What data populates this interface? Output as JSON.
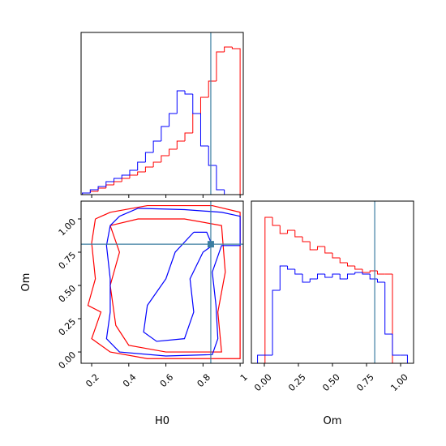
{
  "chart_data": {
    "type": "corner",
    "x_label": "H0",
    "y_label": "Om",
    "om_x_label": "Om",
    "h0_xlim": [
      0.143,
      1.017
    ],
    "h0_ticks": [
      0.2,
      0.4,
      0.6,
      0.8,
      1.0
    ],
    "om_ylim": [
      -0.085,
      1.134
    ],
    "om_xlim": [
      -0.095,
      1.095
    ],
    "om_ticks": [
      {
        "value": 0,
        "label": "0.00"
      },
      {
        "value": 0.25,
        "label": "0.25"
      },
      {
        "value": 0.5,
        "label": "0.50"
      },
      {
        "value": 0.75,
        "label": "0.75"
      },
      {
        "value": 1,
        "label": "1.00"
      }
    ],
    "hist_ylim": [
      0,
      1
    ],
    "truths": {
      "H0": 0.842,
      "Om": 0.81,
      "color": "#3b7ea1"
    },
    "h0_hist": {
      "bins": [
        0.15,
        0.1925,
        0.235,
        0.2775,
        0.32,
        0.3625,
        0.405,
        0.4475,
        0.49,
        0.5325,
        0.575,
        0.6175,
        0.66,
        0.7025,
        0.745,
        0.7875,
        0.83,
        0.8725,
        0.915,
        0.9575,
        1.0
      ],
      "series": [
        {
          "color": "#ff0000",
          "values": [
            0.01,
            0.02,
            0.04,
            0.06,
            0.08,
            0.1,
            0.12,
            0.14,
            0.17,
            0.2,
            0.24,
            0.28,
            0.33,
            0.38,
            0.5,
            0.6,
            0.7,
            0.88,
            0.91,
            0.9
          ]
        },
        {
          "color": "#0000ff",
          "values": [
            0.01,
            0.03,
            0.05,
            0.08,
            0.1,
            0.12,
            0.15,
            0.2,
            0.26,
            0.33,
            0.42,
            0.5,
            0.64,
            0.62,
            0.5,
            0.3,
            0.18,
            0.03,
            0.0,
            0.0
          ]
        }
      ]
    },
    "om_hist": {
      "bins": [
        -0.05,
        0.005,
        0.06,
        0.115,
        0.17,
        0.225,
        0.28,
        0.335,
        0.39,
        0.445,
        0.5,
        0.555,
        0.61,
        0.665,
        0.72,
        0.775,
        0.83,
        0.885,
        0.94,
        0.995,
        1.05
      ],
      "series": [
        {
          "color": "#ff0000",
          "values": [
            0,
            0.9,
            0.85,
            0.8,
            0.82,
            0.78,
            0.75,
            0.7,
            0.72,
            0.68,
            0.65,
            0.62,
            0.6,
            0.58,
            0.56,
            0.57,
            0.55,
            0.55,
            0,
            0
          ]
        },
        {
          "color": "#0000ff",
          "values": [
            0.05,
            0.05,
            0.45,
            0.6,
            0.58,
            0.55,
            0.5,
            0.52,
            0.55,
            0.53,
            0.55,
            0.52,
            0.55,
            0.56,
            0.55,
            0.52,
            0.5,
            0.18,
            0.05,
            0.05
          ]
        }
      ]
    },
    "contours": [
      {
        "color": "#ff0000",
        "x": [
          0.22,
          0.3,
          0.5,
          0.85,
          1.0,
          1.0,
          0.5,
          0.3,
          0.2,
          0.25,
          0.18,
          0.22,
          0.2,
          0.22
        ],
        "y": [
          1.0,
          1.05,
          1.1,
          1.1,
          1.05,
          -0.05,
          -0.05,
          0.0,
          0.1,
          0.3,
          0.35,
          0.55,
          0.82,
          1.0
        ]
      },
      {
        "color": "#ff0000",
        "x": [
          0.3,
          0.45,
          0.7,
          0.9,
          0.92,
          0.88,
          0.9,
          0.6,
          0.4,
          0.33,
          0.3,
          0.35,
          0.3
        ],
        "y": [
          0.95,
          1.0,
          1.0,
          0.95,
          0.6,
          0.3,
          0.0,
          0.0,
          0.05,
          0.2,
          0.5,
          0.75,
          0.95
        ]
      },
      {
        "color": "#0000ff",
        "x": [
          0.35,
          0.45,
          0.7,
          0.9,
          1.0,
          1.0,
          0.9,
          0.85,
          0.87,
          0.88,
          0.85,
          0.6,
          0.35,
          0.28,
          0.3,
          0.3,
          0.28,
          0.3,
          0.35
        ],
        "y": [
          1.02,
          1.08,
          1.07,
          1.05,
          1.02,
          0.8,
          0.8,
          0.6,
          0.35,
          0.1,
          -0.02,
          -0.03,
          0.0,
          0.1,
          0.3,
          0.55,
          0.8,
          0.95,
          1.02
        ]
      },
      {
        "color": "#0000ff",
        "x": [
          0.75,
          0.65,
          0.6,
          0.5,
          0.48,
          0.55,
          0.7,
          0.75,
          0.73,
          0.8,
          0.85,
          0.82,
          0.75
        ],
        "y": [
          0.9,
          0.75,
          0.55,
          0.35,
          0.15,
          0.08,
          0.1,
          0.3,
          0.55,
          0.75,
          0.8,
          0.9,
          0.9
        ]
      }
    ]
  }
}
